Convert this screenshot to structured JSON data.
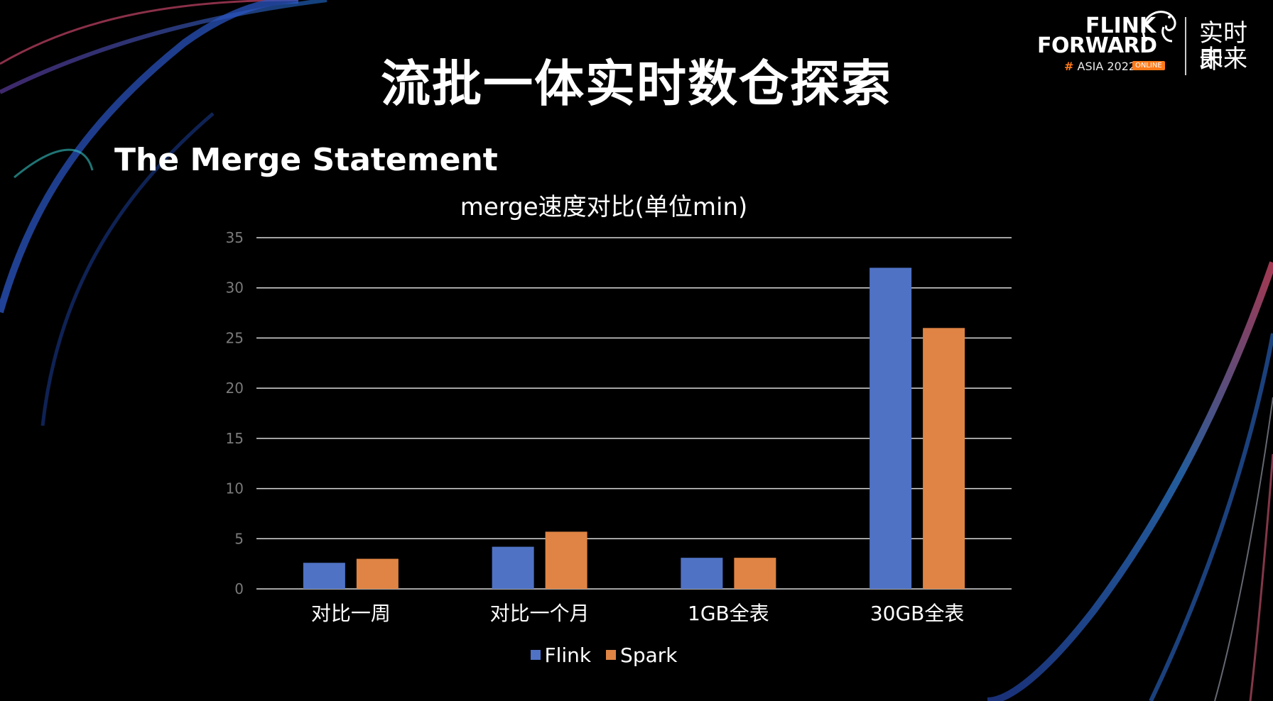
{
  "slide": {
    "title": "流批一体实时数仓探索",
    "section_title": "The Merge Statement"
  },
  "logo": {
    "line1": "FLINK",
    "line2": "FORWARD",
    "hash": "#",
    "event": "ASIA 2022",
    "badge": "ONLINE",
    "cn_line1": "实时即",
    "cn_line2": "未来",
    "icon": "squirrel-icon"
  },
  "colors": {
    "flink": "#4f72c4",
    "spark": "#df8444",
    "grid": "#d9d9d9",
    "tick_label": "#7a7a7a",
    "accent": "#ff7a1a"
  },
  "chart_data": {
    "type": "bar",
    "title": "merge速度对比(单位min)",
    "categories": [
      "对比一周",
      "对比一个月",
      "1GB全表",
      "30GB全表"
    ],
    "series": [
      {
        "name": "Flink",
        "values": [
          2.6,
          4.2,
          3.1,
          32
        ]
      },
      {
        "name": "Spark",
        "values": [
          3.0,
          5.7,
          3.1,
          26
        ]
      }
    ],
    "ylim": [
      0,
      35
    ],
    "yticks": [
      0,
      5,
      10,
      15,
      20,
      25,
      30,
      35
    ],
    "grid": true,
    "legend": "bottom"
  }
}
